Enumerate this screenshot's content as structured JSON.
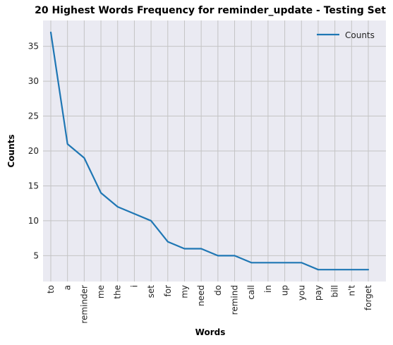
{
  "chart_data": {
    "type": "line",
    "title": "20 Highest Words Frequency for reminder_update - Testing Set",
    "xlabel": "Words",
    "ylabel": "Counts",
    "categories": [
      "to",
      "a",
      "reminder",
      "me",
      "the",
      "i",
      "set",
      "for",
      "my",
      "need",
      "do",
      "remind",
      "call",
      "in",
      "up",
      "you",
      "pay",
      "bill",
      "n't",
      "forget"
    ],
    "series": [
      {
        "name": "Counts",
        "values": [
          37,
          21,
          19,
          14,
          12,
          11,
          10,
          7,
          6,
          6,
          5,
          5,
          4,
          4,
          4,
          4,
          3,
          3,
          3,
          3
        ],
        "color": "#1f77b4"
      }
    ],
    "ylim": [
      1.3,
      38.7
    ],
    "yticks": [
      5,
      10,
      15,
      20,
      25,
      30,
      35
    ],
    "grid": true,
    "legend": "top-right",
    "background": "#eaeaf2",
    "grid_color": "#c4c4c4"
  }
}
